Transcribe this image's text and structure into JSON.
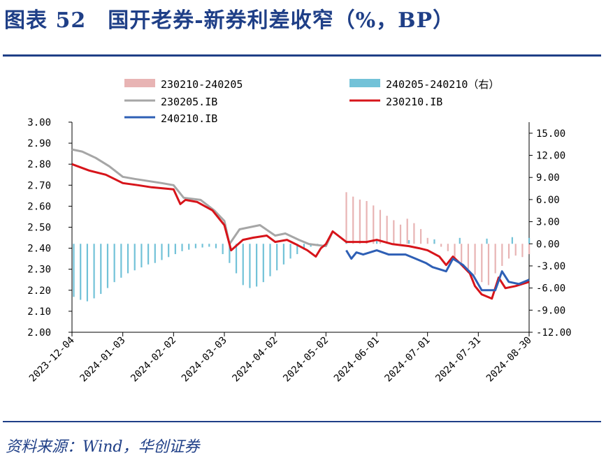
{
  "title": "图表 52　国开老券-新券利差收窄（%，BP）",
  "source": "资料来源：Wind，华创证券",
  "chart_data": {
    "type": "line",
    "x_ticks": [
      "2023-12-04",
      "2024-01-03",
      "2024-02-02",
      "2024-03-03",
      "2024-04-02",
      "2024-05-02",
      "2024-06-01",
      "2024-07-01",
      "2024-07-31",
      "2024-08-30"
    ],
    "y_left": {
      "range": [
        2.0,
        3.0
      ],
      "ticks": [
        "2.00",
        "2.10",
        "2.20",
        "2.30",
        "2.40",
        "2.50",
        "2.60",
        "2.70",
        "2.80",
        "2.90",
        "3.00"
      ]
    },
    "y_right": {
      "range": [
        -12.0,
        16.5
      ],
      "ticks": [
        "-12.00",
        "-9.00",
        "-6.00",
        "-3.00",
        "0.00",
        "3.00",
        "6.00",
        "9.00",
        "12.00",
        "15.00"
      ]
    },
    "legend": [
      {
        "name": "230210-240205",
        "style": "bar",
        "color": "#e8b4b4"
      },
      {
        "name": "240205-240210（右）",
        "style": "bar",
        "color": "#72c2d8"
      },
      {
        "name": "230205.IB",
        "style": "line",
        "color": "#a6a6a6"
      },
      {
        "name": "230210.IB",
        "style": "line",
        "color": "#d7141a"
      },
      {
        "name": "240210.IB",
        "style": "line",
        "color": "#2e5fb5"
      }
    ],
    "series": [
      {
        "name": "230205.IB",
        "axis": "left",
        "color": "#a6a6a6",
        "points": [
          [
            "2023-12-04",
            2.87
          ],
          [
            "2023-12-10",
            2.86
          ],
          [
            "2023-12-18",
            2.83
          ],
          [
            "2023-12-26",
            2.79
          ],
          [
            "2024-01-03",
            2.74
          ],
          [
            "2024-01-10",
            2.73
          ],
          [
            "2024-01-18",
            2.72
          ],
          [
            "2024-01-26",
            2.71
          ],
          [
            "2024-02-02",
            2.7
          ],
          [
            "2024-02-08",
            2.64
          ],
          [
            "2024-02-18",
            2.63
          ],
          [
            "2024-02-26",
            2.58
          ],
          [
            "2024-03-03",
            2.53
          ],
          [
            "2024-03-06",
            2.42
          ],
          [
            "2024-03-12",
            2.49
          ],
          [
            "2024-03-18",
            2.5
          ],
          [
            "2024-03-24",
            2.51
          ],
          [
            "2024-04-02",
            2.46
          ],
          [
            "2024-04-08",
            2.47
          ],
          [
            "2024-04-16",
            2.44
          ],
          [
            "2024-04-22",
            2.42
          ],
          [
            "2024-05-02",
            2.41
          ],
          [
            "2024-05-06",
            2.48
          ]
        ]
      },
      {
        "name": "230210.IB",
        "axis": "left",
        "color": "#d7141a",
        "points": [
          [
            "2023-12-04",
            2.8
          ],
          [
            "2023-12-14",
            2.77
          ],
          [
            "2023-12-24",
            2.75
          ],
          [
            "2024-01-03",
            2.71
          ],
          [
            "2024-01-12",
            2.7
          ],
          [
            "2024-01-20",
            2.69
          ],
          [
            "2024-02-02",
            2.68
          ],
          [
            "2024-02-06",
            2.61
          ],
          [
            "2024-02-09",
            2.63
          ],
          [
            "2024-02-16",
            2.62
          ],
          [
            "2024-02-25",
            2.58
          ],
          [
            "2024-03-03",
            2.51
          ],
          [
            "2024-03-07",
            2.39
          ],
          [
            "2024-03-14",
            2.44
          ],
          [
            "2024-03-20",
            2.45
          ],
          [
            "2024-03-28",
            2.46
          ],
          [
            "2024-04-02",
            2.43
          ],
          [
            "2024-04-09",
            2.44
          ],
          [
            "2024-04-14",
            2.42
          ],
          [
            "2024-04-21",
            2.39
          ],
          [
            "2024-04-26",
            2.36
          ],
          [
            "2024-04-29",
            2.4
          ],
          [
            "2024-05-02",
            2.42
          ],
          [
            "2024-05-06",
            2.48
          ],
          [
            "2024-05-14",
            2.43
          ],
          [
            "2024-05-26",
            2.43
          ],
          [
            "2024-06-01",
            2.44
          ],
          [
            "2024-06-10",
            2.42
          ],
          [
            "2024-06-20",
            2.41
          ],
          [
            "2024-06-26",
            2.4
          ],
          [
            "2024-07-01",
            2.39
          ],
          [
            "2024-07-08",
            2.36
          ],
          [
            "2024-07-12",
            2.32
          ],
          [
            "2024-07-16",
            2.36
          ],
          [
            "2024-07-20",
            2.33
          ],
          [
            "2024-07-26",
            2.28
          ],
          [
            "2024-07-29",
            2.22
          ],
          [
            "2024-08-02",
            2.18
          ],
          [
            "2024-08-08",
            2.16
          ],
          [
            "2024-08-12",
            2.26
          ],
          [
            "2024-08-16",
            2.21
          ],
          [
            "2024-08-22",
            2.22
          ],
          [
            "2024-08-30",
            2.24
          ]
        ]
      },
      {
        "name": "240210.IB",
        "axis": "left",
        "color": "#2e5fb5",
        "points": [
          [
            "2024-05-14",
            2.39
          ],
          [
            "2024-05-17",
            2.35
          ],
          [
            "2024-05-20",
            2.38
          ],
          [
            "2024-05-24",
            2.37
          ],
          [
            "2024-06-01",
            2.39
          ],
          [
            "2024-06-08",
            2.37
          ],
          [
            "2024-06-18",
            2.37
          ],
          [
            "2024-06-24",
            2.35
          ],
          [
            "2024-06-30",
            2.33
          ],
          [
            "2024-07-04",
            2.31
          ],
          [
            "2024-07-12",
            2.29
          ],
          [
            "2024-07-16",
            2.35
          ],
          [
            "2024-07-22",
            2.32
          ],
          [
            "2024-07-28",
            2.27
          ],
          [
            "2024-08-02",
            2.2
          ],
          [
            "2024-08-10",
            2.2
          ],
          [
            "2024-08-14",
            2.29
          ],
          [
            "2024-08-18",
            2.24
          ],
          [
            "2024-08-24",
            2.23
          ],
          [
            "2024-08-30",
            2.25
          ]
        ]
      },
      {
        "name": "230210-240205",
        "axis": "right",
        "style": "bar",
        "color": "#e8b4b4",
        "points": [
          [
            "2024-05-14",
            7.0
          ],
          [
            "2024-05-18",
            6.4
          ],
          [
            "2024-05-22",
            6.0
          ],
          [
            "2024-05-26",
            5.8
          ],
          [
            "2024-05-30",
            5.2
          ],
          [
            "2024-06-03",
            4.6
          ],
          [
            "2024-06-07",
            3.8
          ],
          [
            "2024-06-11",
            3.2
          ],
          [
            "2024-06-15",
            2.6
          ],
          [
            "2024-06-19",
            3.4
          ],
          [
            "2024-06-23",
            2.8
          ],
          [
            "2024-06-27",
            2.0
          ],
          [
            "2024-07-01",
            0.8
          ],
          [
            "2024-07-05",
            0.2
          ],
          [
            "2024-07-09",
            -0.4
          ],
          [
            "2024-07-13",
            -1.0
          ],
          [
            "2024-07-17",
            -2.2
          ],
          [
            "2024-07-21",
            -2.6
          ],
          [
            "2024-07-25",
            -3.4
          ],
          [
            "2024-07-29",
            -4.2
          ],
          [
            "2024-08-02",
            -5.2
          ],
          [
            "2024-08-06",
            -5.6
          ],
          [
            "2024-08-10",
            -4.0
          ],
          [
            "2024-08-14",
            -3.0
          ],
          [
            "2024-08-18",
            -2.0
          ],
          [
            "2024-08-22",
            -1.6
          ],
          [
            "2024-08-26",
            -1.8
          ],
          [
            "2024-08-30",
            -1.4
          ]
        ]
      },
      {
        "name": "240205-240210（右）",
        "axis": "right",
        "style": "bar",
        "color": "#72c2d8",
        "points": [
          [
            "2023-12-05",
            -7.2
          ],
          [
            "2023-12-09",
            -7.6
          ],
          [
            "2023-12-13",
            -7.8
          ],
          [
            "2023-12-17",
            -7.4
          ],
          [
            "2023-12-21",
            -6.8
          ],
          [
            "2023-12-25",
            -6.0
          ],
          [
            "2023-12-29",
            -5.2
          ],
          [
            "2024-01-02",
            -4.6
          ],
          [
            "2024-01-06",
            -4.0
          ],
          [
            "2024-01-10",
            -3.6
          ],
          [
            "2024-01-14",
            -3.2
          ],
          [
            "2024-01-18",
            -2.8
          ],
          [
            "2024-01-22",
            -2.6
          ],
          [
            "2024-01-26",
            -2.2
          ],
          [
            "2024-01-30",
            -1.8
          ],
          [
            "2024-02-03",
            -1.4
          ],
          [
            "2024-02-07",
            -1.0
          ],
          [
            "2024-02-11",
            -0.8
          ],
          [
            "2024-02-15",
            -0.6
          ],
          [
            "2024-02-19",
            -0.5
          ],
          [
            "2024-02-23",
            -0.4
          ],
          [
            "2024-02-27",
            -0.6
          ],
          [
            "2024-03-02",
            -1.4
          ],
          [
            "2024-03-06",
            -2.6
          ],
          [
            "2024-03-10",
            -4.0
          ],
          [
            "2024-03-14",
            -5.6
          ],
          [
            "2024-03-18",
            -6.0
          ],
          [
            "2024-03-22",
            -5.8
          ],
          [
            "2024-03-26",
            -5.2
          ],
          [
            "2024-03-30",
            -4.4
          ],
          [
            "2024-04-03",
            -3.6
          ],
          [
            "2024-04-07",
            -2.8
          ],
          [
            "2024-04-11",
            -2.0
          ],
          [
            "2024-04-15",
            -1.4
          ],
          [
            "2024-04-19",
            -0.8
          ],
          [
            "2024-04-23",
            -0.4
          ],
          [
            "2024-04-27",
            -0.3
          ],
          [
            "2024-05-14",
            0.2
          ],
          [
            "2024-06-01",
            0.4
          ],
          [
            "2024-06-20",
            0.5
          ],
          [
            "2024-07-05",
            0.6
          ],
          [
            "2024-07-20",
            0.8
          ],
          [
            "2024-08-05",
            0.7
          ],
          [
            "2024-08-20",
            0.9
          ],
          [
            "2024-08-30",
            0.8
          ]
        ]
      }
    ]
  }
}
